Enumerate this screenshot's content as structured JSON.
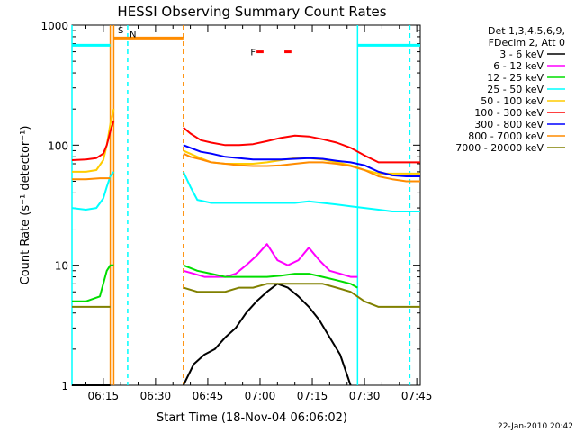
{
  "chart_data": {
    "type": "line",
    "title": "HESSI Observing Summary Count Rates",
    "xlabel": "Start Time (18-Nov-04 06:06:02)",
    "ylabel": "Count Rate (s⁻¹ detector⁻¹)",
    "yscale": "log",
    "ylim": [
      1,
      1000
    ],
    "xlim_minutes": [
      0,
      100
    ],
    "x_ticks": [
      {
        "label": "06:15",
        "minute": 9
      },
      {
        "label": "06:30",
        "minute": 24
      },
      {
        "label": "06:45",
        "minute": 39
      },
      {
        "label": "07:00",
        "minute": 54
      },
      {
        "label": "07:15",
        "minute": 69
      },
      {
        "label": "07:30",
        "minute": 84
      },
      {
        "label": "07:45",
        "minute": 99
      }
    ],
    "y_ticks": [
      {
        "label": "1",
        "value": 1
      },
      {
        "label": "10",
        "value": 10
      },
      {
        "label": "100",
        "value": 100
      },
      {
        "label": "1000",
        "value": 1000
      }
    ],
    "legend_header": [
      "Det 1,3,4,5,6,9,",
      "FDecim 2, Att 0"
    ],
    "legend_position": "right",
    "footer": "22-Jan-2010 20:42",
    "gaps_minutes": [
      [
        12,
        32
      ],
      [
        82,
        100
      ]
    ],
    "series": [
      {
        "name": "3 - 6 keV",
        "color": "#000000",
        "x": [
          0,
          4,
          8,
          11,
          32,
          35,
          38,
          41,
          44,
          47,
          50,
          53,
          56,
          59,
          62,
          65,
          68,
          71,
          74,
          77,
          80
        ],
        "y": [
          1,
          1,
          1,
          1,
          1,
          1.5,
          1.8,
          2,
          2.5,
          3,
          4,
          5,
          6,
          7,
          6.5,
          5.5,
          4.5,
          3.5,
          2.5,
          1.8,
          1
        ]
      },
      {
        "name": "6 - 12 keV",
        "color": "#ff00ff",
        "x": [
          32,
          35,
          38,
          41,
          44,
          47,
          50,
          53,
          56,
          59,
          62,
          65,
          68,
          71,
          74,
          77,
          80,
          82
        ],
        "y": [
          9,
          8.5,
          8,
          8,
          8,
          8.5,
          10,
          12,
          15,
          11,
          10,
          11,
          14,
          11,
          9,
          8.5,
          8,
          8
        ]
      },
      {
        "name": "12 - 25 keV",
        "color": "#00dd00",
        "x": [
          0,
          4,
          8,
          9,
          10,
          11,
          12,
          32,
          36,
          40,
          44,
          48,
          52,
          56,
          60,
          64,
          68,
          72,
          76,
          80,
          82
        ],
        "y": [
          5,
          5,
          5.5,
          7,
          9,
          10,
          10,
          10,
          9,
          8.5,
          8,
          8,
          8,
          8,
          8.2,
          8.5,
          8.5,
          8,
          7.5,
          7,
          6.5
        ]
      },
      {
        "name": "25 - 50 keV",
        "color": "#00ffff",
        "x": [
          0,
          4,
          7,
          9,
          10,
          11,
          12,
          32,
          34,
          36,
          40,
          44,
          48,
          52,
          56,
          60,
          64,
          68,
          72,
          76,
          80,
          84,
          88,
          92,
          96,
          100
        ],
        "y": [
          30,
          29,
          30,
          36,
          45,
          55,
          60,
          60,
          45,
          35,
          33,
          33,
          33,
          33,
          33,
          33,
          33,
          34,
          33,
          32,
          31,
          30,
          29,
          28,
          28,
          28
        ]
      },
      {
        "name": "50 - 100 keV",
        "color": "#ffcc00",
        "x": [
          0,
          4,
          7,
          9,
          10,
          11,
          12,
          32,
          36,
          40,
          44,
          48,
          52,
          56,
          60,
          64,
          68,
          72,
          76,
          80,
          84,
          88,
          92,
          96,
          100
        ],
        "y": [
          60,
          60,
          62,
          75,
          100,
          150,
          200,
          90,
          80,
          72,
          70,
          70,
          70,
          72,
          75,
          78,
          78,
          76,
          72,
          68,
          62,
          58,
          58,
          58,
          58
        ]
      },
      {
        "name": "100 - 300 keV",
        "color": "#ff0000",
        "x": [
          0,
          4,
          7,
          9,
          10,
          11,
          12,
          32,
          34,
          37,
          40,
          44,
          48,
          52,
          56,
          60,
          64,
          68,
          72,
          76,
          80,
          84,
          88,
          92,
          96,
          100
        ],
        "y": [
          75,
          76,
          78,
          85,
          100,
          130,
          160,
          140,
          125,
          110,
          105,
          100,
          100,
          102,
          108,
          115,
          120,
          118,
          112,
          105,
          95,
          82,
          72,
          72,
          72,
          72
        ]
      },
      {
        "name": "300 - 800 keV",
        "color": "#0000ff",
        "x": [
          32,
          34,
          37,
          40,
          44,
          48,
          52,
          56,
          60,
          64,
          68,
          72,
          76,
          80,
          84,
          88,
          92,
          96,
          100
        ],
        "y": [
          100,
          95,
          88,
          85,
          80,
          78,
          76,
          76,
          76,
          77,
          78,
          77,
          74,
          72,
          68,
          60,
          56,
          55,
          55
        ]
      },
      {
        "name": "800 - 7000 keV",
        "color": "#ff8c00",
        "x": [
          0,
          4,
          8,
          11,
          32,
          34,
          37,
          40,
          44,
          48,
          52,
          56,
          60,
          64,
          68,
          72,
          76,
          80,
          84,
          88,
          92,
          96,
          100
        ],
        "y": [
          52,
          52,
          53,
          53,
          85,
          80,
          76,
          72,
          70,
          68,
          67,
          67,
          68,
          70,
          72,
          72,
          70,
          67,
          62,
          55,
          52,
          50,
          50
        ]
      },
      {
        "name": "7000 - 20000 keV",
        "color": "#808000",
        "x": [
          0,
          4,
          8,
          11,
          32,
          36,
          40,
          44,
          48,
          52,
          56,
          60,
          64,
          68,
          72,
          76,
          80,
          84,
          88,
          92,
          96,
          100
        ],
        "y": [
          4.5,
          4.5,
          4.5,
          4.5,
          6.5,
          6,
          6,
          6,
          6.5,
          6.5,
          7,
          7,
          7,
          7,
          7,
          6.5,
          6,
          5,
          4.5,
          4.5,
          4.5,
          4.5
        ]
      }
    ],
    "annotations": {
      "flags": [
        {
          "label": "S",
          "color": "#ff8c00"
        },
        {
          "label": "N",
          "color": "#00ffff"
        },
        {
          "label": "F",
          "color": "#ff0000"
        }
      ],
      "bars": [
        {
          "color": "#00ffff",
          "from": 0,
          "to": 11,
          "value": 680
        },
        {
          "color": "#ff8c00",
          "from": 12,
          "to": 32,
          "value": 780
        },
        {
          "color": "#ff0000",
          "from": 53,
          "to": 55,
          "value": 600
        },
        {
          "color": "#ff0000",
          "from": 61,
          "to": 63,
          "value": 600
        },
        {
          "color": "#00ffff",
          "from": 82,
          "to": 100,
          "value": 680
        }
      ],
      "vlines": [
        {
          "minute": 0,
          "color": "#00ffff",
          "dash": false
        },
        {
          "minute": 11,
          "color": "#ff8c00",
          "dash": false
        },
        {
          "minute": 12,
          "color": "#ff8c00",
          "dash": false
        },
        {
          "minute": 16,
          "color": "#00ffff",
          "dash": true
        },
        {
          "minute": 32,
          "color": "#ff8c00",
          "dash": true
        },
        {
          "minute": 82,
          "color": "#00ffff",
          "dash": false
        },
        {
          "minute": 97,
          "color": "#00ffff",
          "dash": true
        }
      ]
    }
  }
}
